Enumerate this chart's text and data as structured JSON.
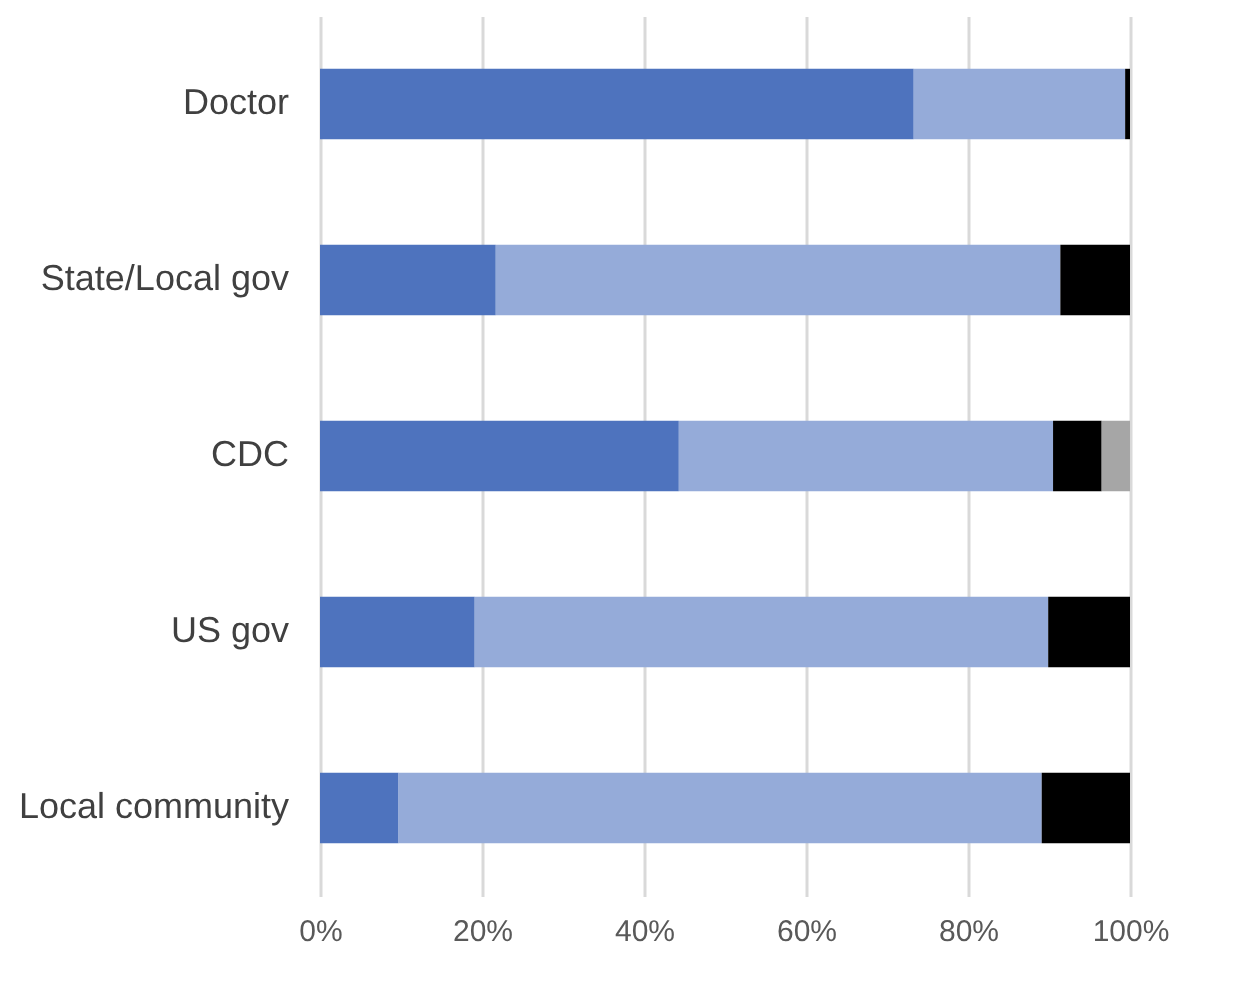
{
  "chart_data": {
    "type": "bar",
    "orientation": "horizontal",
    "stacked": true,
    "categories": [
      "Doctor",
      "State/Local gov",
      "CDC",
      "US gov",
      "Local community"
    ],
    "series": [
      {
        "color": "#4e73be",
        "values": [
          73.3,
          21.7,
          44.3,
          19.1,
          9.7
        ]
      },
      {
        "color": "#95abd9",
        "values": [
          26.1,
          69.7,
          46.2,
          70.8,
          79.4
        ]
      },
      {
        "color": "#000000",
        "values": [
          0.6,
          8.6,
          6.0,
          10.1,
          10.9
        ]
      },
      {
        "color": "#a6a6a6",
        "values": [
          0,
          0,
          3.5,
          0,
          0
        ]
      }
    ],
    "xlim": [
      0,
      100
    ],
    "xticks": [
      {
        "value": 0,
        "label": "0%"
      },
      {
        "value": 20,
        "label": "20%"
      },
      {
        "value": 40,
        "label": "40%"
      },
      {
        "value": 60,
        "label": "60%"
      },
      {
        "value": 80,
        "label": "80%"
      },
      {
        "value": 100,
        "label": "100%"
      }
    ],
    "grid": "x",
    "legend": false
  }
}
